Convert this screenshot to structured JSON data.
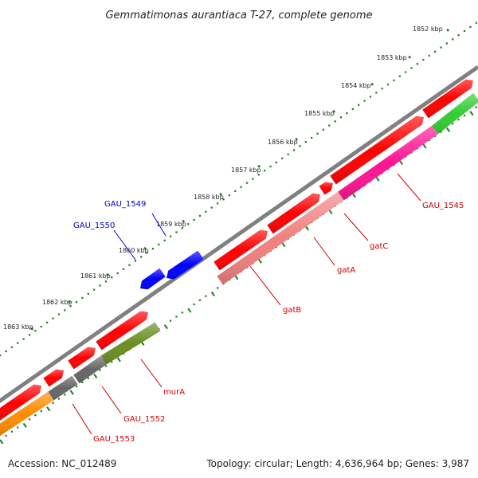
{
  "title": "Gemmatimonas aurantiaca T-27, complete genome",
  "footer": {
    "accession": "Accession: NC_012489",
    "summary": "Topology: circular; Length: 4,636,964 bp; Genes: 3,987"
  },
  "colors": {
    "backbone": "#808080",
    "dots": "#1a7a1a",
    "gene_red": "#ff0000",
    "gene_blue": "#0000ff",
    "gatB": "#f08080",
    "gatA_gatC": "#ff1493",
    "gau1545": "#32cd32",
    "murA": "#6b8e23",
    "gau1552": "#666666",
    "gau1553": "#ff8c00",
    "label_red": "#cc0000",
    "label_blue": "#0000cc"
  },
  "ruler": [
    "1852 kbp",
    "1853 kbp",
    "1854 kbp",
    "1855 kbp",
    "1856 kbp",
    "1857 kbp",
    "1858 kbp",
    "1859 kbp",
    "1860 kbp",
    "1861 kbp",
    "1862 kbp",
    "1863 kbp"
  ],
  "gene_labels": {
    "gau1545": "GAU_1545",
    "gatC": "gatC",
    "gatA": "gatA",
    "gatB": "gatB",
    "murA": "murA",
    "gau1552": "GAU_1552",
    "gau1553": "GAU_1553",
    "gau1549": "GAU_1549",
    "gau1550": "GAU_1550"
  }
}
